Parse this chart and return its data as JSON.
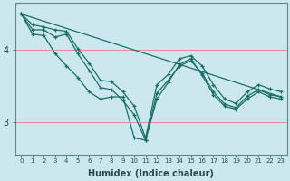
{
  "xlabel": "Humidex (Indice chaleur)",
  "bg_color": "#cce8ee",
  "grid_color": "#e88080",
  "line_color": "#1a6e65",
  "xlim": [
    -0.5,
    23.5
  ],
  "ylim": [
    2.55,
    4.65
  ],
  "yticks": [
    3,
    4
  ],
  "xticks": [
    0,
    1,
    2,
    3,
    4,
    5,
    6,
    7,
    8,
    9,
    10,
    11,
    12,
    13,
    14,
    15,
    16,
    17,
    18,
    19,
    20,
    21,
    22,
    23
  ],
  "series": [
    [
      4.5,
      4.35,
      4.32,
      4.28,
      4.26,
      4.02,
      3.82,
      3.58,
      3.56,
      3.42,
      3.22,
      2.78,
      3.52,
      3.66,
      3.88,
      3.92,
      3.78,
      3.52,
      3.32,
      3.26,
      3.42,
      3.52,
      3.46,
      3.42
    ],
    [
      4.5,
      4.28,
      4.28,
      4.18,
      4.22,
      3.95,
      3.72,
      3.48,
      3.45,
      3.3,
      3.1,
      2.75,
      3.4,
      3.58,
      3.78,
      3.85,
      3.68,
      3.42,
      3.25,
      3.2,
      3.36,
      3.45,
      3.38,
      3.35
    ],
    [
      4.5,
      4.22,
      4.2,
      3.95,
      3.78,
      3.62,
      3.42,
      3.32,
      3.35,
      3.35,
      2.78,
      2.75,
      3.32,
      3.55,
      3.8,
      3.88,
      3.65,
      3.38,
      3.22,
      3.18,
      3.32,
      3.42,
      3.35,
      3.32
    ]
  ],
  "diagonal": [
    4.5,
    3.35
  ]
}
